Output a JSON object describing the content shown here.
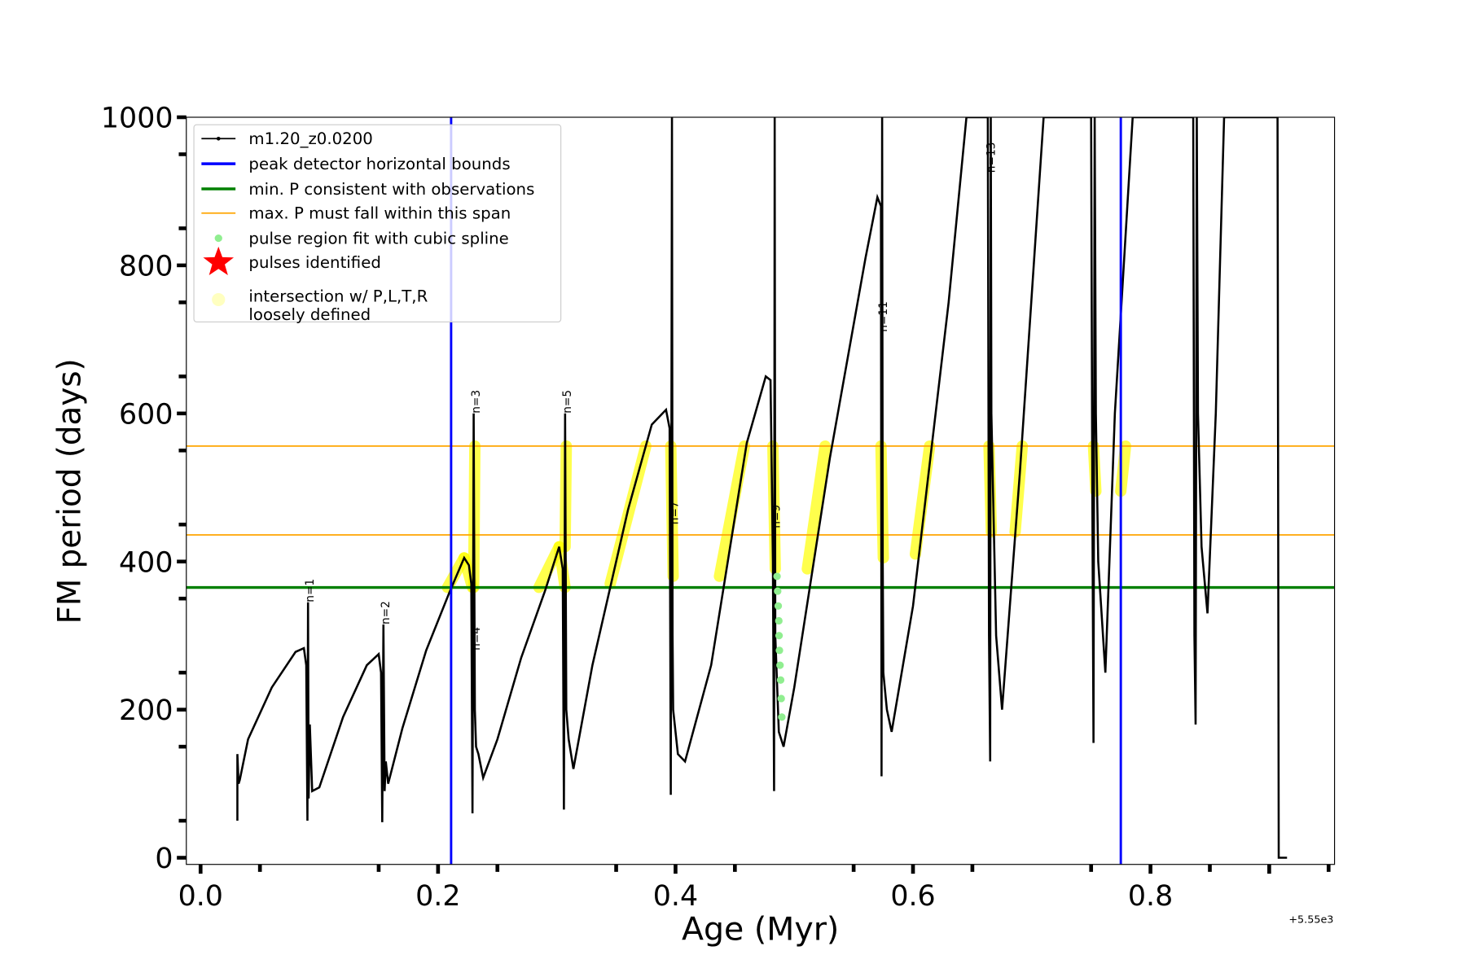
{
  "chart_data": {
    "type": "line",
    "title": "",
    "xlabel": "Age (Myr)",
    "ylabel": "FM period (days)",
    "x_offset_label": "+5.55e3",
    "xlim": [
      -0.012,
      0.955
    ],
    "ylim": [
      -9,
      1000
    ],
    "xticks": [
      0.0,
      0.2,
      0.4,
      0.6,
      0.8
    ],
    "xtick_labels": [
      "0.0",
      "0.2",
      "0.4",
      "0.6",
      "0.8"
    ],
    "yticks": [
      0,
      200,
      400,
      600,
      800,
      1000
    ],
    "ytick_labels": [
      "0",
      "200",
      "400",
      "600",
      "800",
      "1000"
    ],
    "grid": false,
    "legend_position": "top-left",
    "legend": [
      {
        "label": "m1.20_z0.0200",
        "color": "#000000",
        "kind": "line-dot"
      },
      {
        "label": "peak detector horizontal bounds",
        "color": "#0000ff",
        "kind": "line-thick"
      },
      {
        "label": "min. P consistent with observations",
        "color": "#008000",
        "kind": "line-thick"
      },
      {
        "label": "max. P must fall within this span",
        "color": "#ffa500",
        "kind": "line"
      },
      {
        "label": "pulse region fit with cubic spline",
        "color": "#90ee90",
        "kind": "dot"
      },
      {
        "label": "pulses identified",
        "color": "#ff0000",
        "kind": "star"
      },
      {
        "label": "intersection w/ P,L,T,R",
        "label2": "loosely defined",
        "color": "#ffffc0",
        "kind": "bigdot"
      }
    ],
    "vlines": [
      {
        "x": 0.211,
        "color": "#0000ff"
      },
      {
        "x": 0.775,
        "color": "#0000ff"
      }
    ],
    "hlines": [
      {
        "y": 365,
        "color": "#008000",
        "width": 3
      },
      {
        "y": 556,
        "color": "#ffa500",
        "width": 1.5
      },
      {
        "y": 436,
        "color": "#ffa500",
        "width": 1.5
      }
    ],
    "series": [
      {
        "name": "m1.20_z0.0200",
        "x": [
          0.031,
          0.031,
          0.032,
          0.033,
          0.04,
          0.06,
          0.08,
          0.087,
          0.089,
          0.09,
          0.0905,
          0.091,
          0.092,
          0.094,
          0.1,
          0.12,
          0.14,
          0.15,
          0.152,
          0.153,
          0.154,
          0.155,
          0.156,
          0.158,
          0.17,
          0.19,
          0.21,
          0.222,
          0.226,
          0.228,
          0.229,
          0.23,
          0.231,
          0.232,
          0.234,
          0.238,
          0.25,
          0.27,
          0.29,
          0.302,
          0.305,
          0.306,
          0.307,
          0.308,
          0.31,
          0.314,
          0.33,
          0.36,
          0.38,
          0.392,
          0.395,
          0.396,
          0.397,
          0.3975,
          0.398,
          0.402,
          0.408,
          0.43,
          0.46,
          0.476,
          0.48,
          0.482,
          0.483,
          0.4835,
          0.484,
          0.487,
          0.491,
          0.5,
          0.53,
          0.56,
          0.57,
          0.573,
          0.5735,
          0.574,
          0.5745,
          0.575,
          0.578,
          0.582,
          0.6,
          0.63,
          0.645,
          0.663,
          0.664,
          0.665,
          0.6655,
          0.666,
          0.67,
          0.675,
          0.69,
          0.71,
          0.75,
          0.751,
          0.752,
          0.753,
          0.754,
          0.756,
          0.762,
          0.77,
          0.785,
          0.836,
          0.837,
          0.838,
          0.839,
          0.84,
          0.843,
          0.848,
          0.855,
          0.862,
          0.907,
          0.908,
          0.909,
          0.915
        ],
        "y": [
          50,
          140,
          100,
          105,
          160,
          230,
          278,
          283,
          260,
          50,
          345,
          80,
          180,
          90,
          95,
          190,
          260,
          275,
          250,
          48,
          315,
          90,
          130,
          100,
          175,
          280,
          360,
          405,
          395,
          370,
          60,
          600,
          200,
          150,
          140,
          108,
          160,
          270,
          360,
          420,
          390,
          65,
          600,
          200,
          160,
          120,
          260,
          470,
          585,
          605,
          580,
          85,
          1000,
          300,
          200,
          140,
          130,
          260,
          560,
          650,
          645,
          400,
          90,
          1000,
          300,
          170,
          150,
          230,
          540,
          810,
          892,
          880,
          110,
          1000,
          400,
          250,
          200,
          170,
          340,
          750,
          1000,
          1000,
          300,
          130,
          1000,
          600,
          300,
          200,
          520,
          1000,
          1000,
          500,
          155,
          1000,
          600,
          400,
          250,
          600,
          1000,
          1000,
          300,
          180,
          1000,
          600,
          420,
          330,
          600,
          1000,
          1000,
          0,
          0,
          0
        ]
      }
    ],
    "green_points": {
      "x": [
        0.4855,
        0.486,
        0.4865,
        0.487,
        0.4872,
        0.4875,
        0.488,
        0.4885,
        0.489,
        0.4895
      ],
      "y": [
        380,
        360,
        340,
        320,
        300,
        280,
        260,
        240,
        215,
        190
      ]
    },
    "yellow_segments": [
      [
        0.208,
        365,
        0.222,
        405
      ],
      [
        0.222,
        405,
        0.229,
        365
      ],
      [
        0.23,
        365,
        0.231,
        556
      ],
      [
        0.285,
        365,
        0.302,
        420
      ],
      [
        0.302,
        420,
        0.307,
        365
      ],
      [
        0.307,
        420,
        0.308,
        556
      ],
      [
        0.345,
        370,
        0.375,
        556
      ],
      [
        0.396,
        556,
        0.398,
        380
      ],
      [
        0.437,
        380,
        0.458,
        556
      ],
      [
        0.482,
        556,
        0.484,
        390
      ],
      [
        0.511,
        390,
        0.526,
        556
      ],
      [
        0.573,
        556,
        0.575,
        405
      ],
      [
        0.602,
        410,
        0.614,
        556
      ],
      [
        0.664,
        556,
        0.666,
        440
      ],
      [
        0.686,
        440,
        0.692,
        556
      ],
      [
        0.752,
        556,
        0.754,
        495
      ],
      [
        0.775,
        495,
        0.779,
        556
      ]
    ],
    "annotations": [
      {
        "text": "n=1",
        "x": 0.095,
        "y": 345
      },
      {
        "text": "n=2",
        "x": 0.159,
        "y": 315
      },
      {
        "text": "n=3",
        "x": 0.235,
        "y": 600
      },
      {
        "text": "n=4",
        "x": 0.235,
        "y": 280
      },
      {
        "text": "n=5",
        "x": 0.312,
        "y": 600
      },
      {
        "text": "n=7",
        "x": 0.402,
        "y": 450
      },
      {
        "text": "n=9",
        "x": 0.488,
        "y": 445
      },
      {
        "text": "n=11",
        "x": 0.578,
        "y": 710
      },
      {
        "text": "n=13",
        "x": 0.669,
        "y": 925
      }
    ]
  }
}
